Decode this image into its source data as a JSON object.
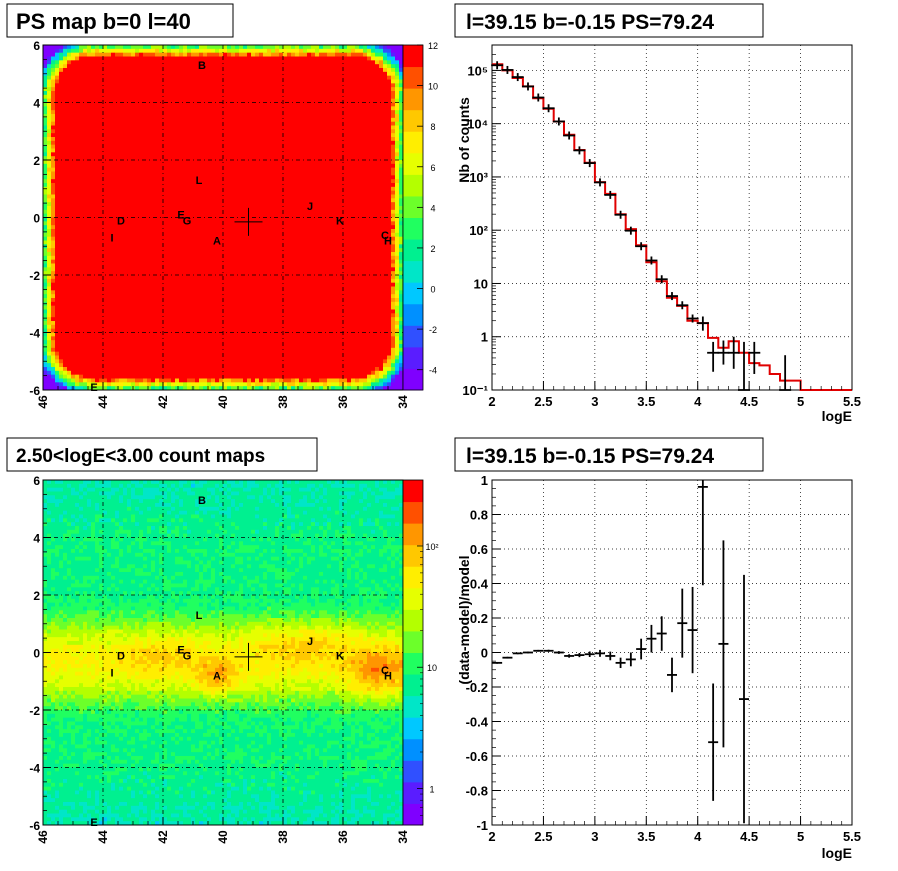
{
  "panels": {
    "tl": {
      "title": "PS map b=0 l=40",
      "xticks": [
        "46",
        "44",
        "42",
        "40",
        "38",
        "36",
        "34"
      ],
      "yticks": [
        "6",
        "4",
        "2",
        "0",
        "-2",
        "-4",
        "-6"
      ]
    },
    "bl": {
      "title": "2.50<logE<3.00 count maps",
      "xticks": [
        "46",
        "44",
        "42",
        "40",
        "38",
        "36",
        "34"
      ],
      "yticks": [
        "6",
        "4",
        "2",
        "0",
        "-2",
        "-4",
        "-6"
      ]
    },
    "tr": {
      "title": "l=39.15 b=-0.15 PS=79.24",
      "xlabel": "logE",
      "ylabel": "Nb of counts"
    },
    "br": {
      "title": "l=39.15 b=-0.15 PS=79.24",
      "xlabel": "logE",
      "ylabel": "(data-model)/model"
    }
  },
  "chart_data": [
    {
      "type": "heatmap",
      "title": "PS map b=0 l=40",
      "xlim": [
        46,
        34
      ],
      "ylim": [
        -6,
        6
      ],
      "colorbar": {
        "min": -5,
        "max": 12,
        "ticks": [
          "12",
          "10",
          "8",
          "6",
          "4",
          "2",
          "0",
          "-2",
          "-4"
        ],
        "palette": [
          "#7f00ff",
          "#5a1dff",
          "#3050ff",
          "#0090ff",
          "#00c8ff",
          "#00e6c8",
          "#00f090",
          "#20ff60",
          "#6cff2a",
          "#b4ff00",
          "#e6ff00",
          "#ffee00",
          "#ffc800",
          "#ff9600",
          "#ff5000",
          "#ff0000"
        ]
      },
      "fill_value": 12,
      "sources": [
        {
          "label": "B",
          "l": 40.7,
          "b": 5.3
        },
        {
          "label": "L",
          "l": 40.8,
          "b": 1.3
        },
        {
          "label": "J",
          "l": 37.1,
          "b": 0.4
        },
        {
          "label": "K",
          "l": 36.1,
          "b": -0.1
        },
        {
          "label": "C",
          "l": 34.6,
          "b": -0.6
        },
        {
          "label": "H",
          "l": 34.5,
          "b": -0.8
        },
        {
          "label": "D",
          "l": 43.4,
          "b": -0.1
        },
        {
          "label": "E",
          "l": 41.4,
          "b": 0.1
        },
        {
          "label": "G",
          "l": 41.2,
          "b": -0.1
        },
        {
          "label": "I",
          "l": 43.7,
          "b": -0.7
        },
        {
          "label": "A",
          "l": 40.2,
          "b": -0.8
        },
        {
          "label": "E",
          "l": 44.3,
          "b": -5.9
        }
      ],
      "marker": {
        "l": 39.15,
        "b": -0.15
      }
    },
    {
      "type": "heatmap",
      "title": "2.50<logE<3.00 count maps",
      "xlim": [
        46,
        34
      ],
      "ylim": [
        -6,
        6
      ],
      "colorbar": {
        "log": true,
        "min": 0.5,
        "max": 350,
        "ticks": [
          "10²",
          "10",
          "1"
        ],
        "tick_values": [
          100,
          10,
          1
        ],
        "palette": [
          "#7f00ff",
          "#5a1dff",
          "#3050ff",
          "#0090ff",
          "#00c8ff",
          "#00e6c8",
          "#00f090",
          "#20ff60",
          "#6cff2a",
          "#b4ff00",
          "#e6ff00",
          "#ffee00",
          "#ffc800",
          "#ff9600",
          "#ff5000",
          "#ff0000"
        ]
      },
      "sources": [
        {
          "label": "B",
          "l": 40.7,
          "b": 5.3
        },
        {
          "label": "L",
          "l": 40.8,
          "b": 1.3
        },
        {
          "label": "J",
          "l": 37.1,
          "b": 0.4
        },
        {
          "label": "K",
          "l": 36.1,
          "b": -0.1
        },
        {
          "label": "C",
          "l": 34.6,
          "b": -0.6
        },
        {
          "label": "H",
          "l": 34.5,
          "b": -0.8
        },
        {
          "label": "D",
          "l": 43.4,
          "b": -0.1
        },
        {
          "label": "E",
          "l": 41.4,
          "b": 0.1
        },
        {
          "label": "G",
          "l": 41.2,
          "b": -0.1
        },
        {
          "label": "I",
          "l": 43.7,
          "b": -0.7
        },
        {
          "label": "A",
          "l": 40.2,
          "b": -0.8
        },
        {
          "label": "E",
          "l": 44.3,
          "b": -5.9
        }
      ],
      "marker": {
        "l": 39.15,
        "b": -0.15
      }
    },
    {
      "type": "line",
      "title": "l=39.15 b=-0.15 PS=79.24",
      "xlabel": "logE",
      "ylabel": "Nb of counts",
      "xlim": [
        2,
        5.5
      ],
      "ylim": [
        0.1,
        300000
      ],
      "ylog": true,
      "grid": true,
      "xticks": [
        "2",
        "2.5",
        "3",
        "3.5",
        "4",
        "4.5",
        "5",
        "5.5"
      ],
      "yticks": [
        {
          "v": 100000,
          "l": "10⁵"
        },
        {
          "v": 10000,
          "l": "10⁴"
        },
        {
          "v": 1000,
          "l": "10³"
        },
        {
          "v": 100,
          "l": "10²"
        },
        {
          "v": 10,
          "l": "10"
        },
        {
          "v": 1,
          "l": "1"
        },
        {
          "v": 0.1,
          "l": "10⁻¹"
        }
      ],
      "model": {
        "edges": [
          2,
          2.1,
          2.2,
          2.3,
          2.4,
          2.5,
          2.6,
          2.7,
          2.8,
          2.9,
          3,
          3.1,
          3.2,
          3.3,
          3.4,
          3.5,
          3.6,
          3.7,
          3.8,
          3.9,
          4,
          4.1,
          4.2,
          4.3,
          4.4,
          4.5,
          4.6,
          4.7,
          4.8,
          4.9,
          5,
          5.1,
          5.2,
          5.3,
          5.4,
          5.5
        ],
        "values": [
          130000,
          100000,
          72000,
          50000,
          30000,
          19000,
          11000,
          6200,
          3200,
          1850,
          800,
          480,
          200,
          105,
          52,
          25,
          11,
          5.4,
          3.8,
          2,
          1.8,
          0.95,
          0.62,
          0.82,
          0.5,
          0.32,
          0.29,
          0.2,
          0.15,
          0.15,
          0.1,
          0.1,
          0.1,
          0.1,
          0.1
        ]
      },
      "data": {
        "x": [
          2.05,
          2.15,
          2.25,
          2.35,
          2.45,
          2.55,
          2.65,
          2.75,
          2.85,
          2.95,
          3.05,
          3.15,
          3.25,
          3.35,
          3.45,
          3.55,
          3.65,
          3.75,
          3.85,
          3.95,
          4.05,
          4.15,
          4.25,
          4.35,
          4.45,
          4.55,
          4.85
        ],
        "y": [
          122000,
          100000,
          74000,
          49000,
          30000,
          19500,
          11000,
          6000,
          3100,
          1800,
          790,
          460,
          200,
          98,
          50,
          26,
          12,
          5.7,
          3.9,
          2,
          1.8,
          1.3,
          2.8,
          1.9,
          4,
          2.2,
          1
        ],
        "yerr_lo": [
          0,
          0,
          0,
          0,
          0,
          0,
          0,
          0,
          0,
          0,
          0,
          0,
          0,
          0,
          0,
          0,
          0,
          0,
          0,
          0,
          0,
          0,
          0,
          0,
          0,
          0,
          0
        ],
        "yerr_hi": [
          0,
          0,
          0,
          0,
          0,
          0,
          0,
          0,
          0,
          0,
          0,
          0,
          0,
          0,
          0,
          0,
          0,
          0,
          0,
          0,
          0,
          0,
          0,
          0,
          0,
          0,
          0
        ]
      },
      "points": [
        {
          "x": 2.05,
          "y": 125000
        },
        {
          "x": 2.15,
          "y": 102000
        },
        {
          "x": 2.25,
          "y": 75000
        },
        {
          "x": 2.35,
          "y": 50000
        },
        {
          "x": 2.45,
          "y": 31000
        },
        {
          "x": 2.55,
          "y": 19500
        },
        {
          "x": 2.65,
          "y": 11000
        },
        {
          "x": 2.75,
          "y": 6000
        },
        {
          "x": 2.85,
          "y": 3150
        },
        {
          "x": 2.95,
          "y": 1820
        },
        {
          "x": 3.05,
          "y": 790
        },
        {
          "x": 3.15,
          "y": 460
        },
        {
          "x": 3.25,
          "y": 195
        },
        {
          "x": 3.35,
          "y": 98
        },
        {
          "x": 3.45,
          "y": 50
        },
        {
          "x": 3.55,
          "y": 27
        },
        {
          "x": 3.65,
          "y": 12
        },
        {
          "x": 3.75,
          "y": 5.8
        },
        {
          "x": 3.85,
          "y": 3.9
        },
        {
          "x": 3.95,
          "y": 2.2
        },
        {
          "x": 4.05,
          "y": 1.8,
          "lo": 1.3,
          "hi": 2.4
        },
        {
          "x": 4.15,
          "y": 0.5,
          "lo": 0.22,
          "hi": 0.8
        },
        {
          "x": 4.25,
          "y": 0.5,
          "lo": 0.3,
          "hi": 0.85
        },
        {
          "x": 4.35,
          "y": 0.5,
          "lo": 0.25,
          "hi": 1.0
        },
        {
          "x": 4.45,
          "y": 0.1,
          "lo": 0.1,
          "hi": 0.8
        },
        {
          "x": 4.55,
          "y": 0.5,
          "lo": 0.2,
          "hi": 0.8
        },
        {
          "x": 4.85,
          "y": 0.1,
          "lo": 0.1,
          "hi": 0.45
        }
      ]
    },
    {
      "type": "scatter",
      "title": "l=39.15 b=-0.15 PS=79.24",
      "xlabel": "logE",
      "ylabel": "(data-model)/model",
      "xlim": [
        2,
        5.5
      ],
      "ylim": [
        -1,
        1
      ],
      "grid": true,
      "xticks": [
        "2",
        "2.5",
        "3",
        "3.5",
        "4",
        "4.5",
        "5",
        "5.5"
      ],
      "yticks": [
        "1",
        "0.8",
        "0.6",
        "0.4",
        "0.2",
        "0",
        "-0.2",
        "-0.4",
        "-0.6",
        "-0.8",
        "-1"
      ],
      "points": [
        {
          "x": 2.05,
          "y": -0.06,
          "e": 0.005
        },
        {
          "x": 2.15,
          "y": -0.03,
          "e": 0.005
        },
        {
          "x": 2.25,
          "y": -0.005,
          "e": 0.005
        },
        {
          "x": 2.35,
          "y": 0.0,
          "e": 0.005
        },
        {
          "x": 2.45,
          "y": 0.01,
          "e": 0.005
        },
        {
          "x": 2.55,
          "y": 0.01,
          "e": 0.006
        },
        {
          "x": 2.65,
          "y": 0.0,
          "e": 0.008
        },
        {
          "x": 2.75,
          "y": -0.02,
          "e": 0.01
        },
        {
          "x": 2.85,
          "y": -0.015,
          "e": 0.012
        },
        {
          "x": 2.95,
          "y": -0.01,
          "e": 0.016
        },
        {
          "x": 3.05,
          "y": -0.005,
          "e": 0.02
        },
        {
          "x": 3.15,
          "y": -0.02,
          "e": 0.025
        },
        {
          "x": 3.25,
          "y": -0.06,
          "e": 0.03
        },
        {
          "x": 3.35,
          "y": -0.04,
          "e": 0.04
        },
        {
          "x": 3.45,
          "y": 0.02,
          "e": 0.06
        },
        {
          "x": 3.55,
          "y": 0.08,
          "e": 0.08
        },
        {
          "x": 3.65,
          "y": 0.11,
          "e": 0.1
        },
        {
          "x": 3.75,
          "y": -0.13,
          "e": 0.1
        },
        {
          "x": 3.85,
          "y": 0.17,
          "e": 0.2
        },
        {
          "x": 3.95,
          "y": 0.13,
          "e": 0.25
        },
        {
          "x": 4.05,
          "y": 0.96,
          "e": 0.57
        },
        {
          "x": 4.15,
          "y": -0.52,
          "e": 0.34
        },
        {
          "x": 4.25,
          "y": 0.05,
          "e": 0.6
        },
        {
          "x": 4.45,
          "y": -0.27,
          "e": 0.72
        }
      ]
    }
  ]
}
